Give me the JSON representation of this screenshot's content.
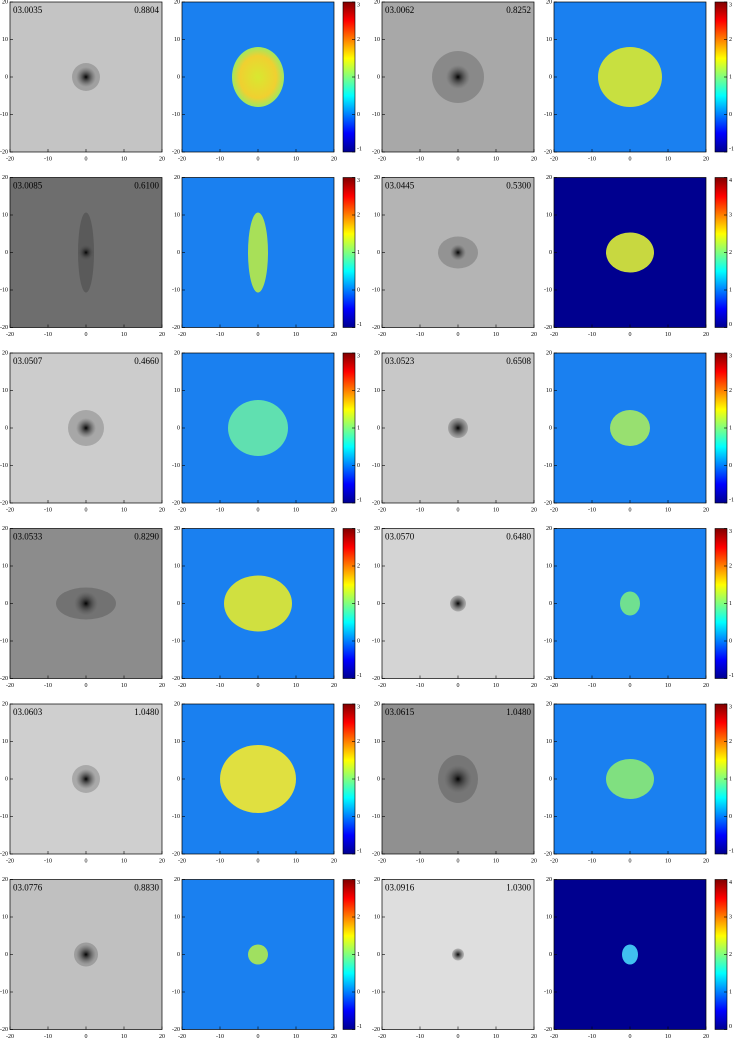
{
  "panels": [
    {
      "id": "03.0035",
      "z": "0.8804",
      "cbar_ticks": [
        -1,
        0,
        1,
        2,
        3
      ]
    },
    {
      "id": "03.0062",
      "z": "0.8252",
      "cbar_ticks": [
        -1,
        0,
        1,
        2,
        3
      ]
    },
    {
      "id": "03.0085",
      "z": "0.6100",
      "cbar_ticks": [
        -1,
        0,
        1,
        2,
        3
      ]
    },
    {
      "id": "03.0445",
      "z": "0.5300",
      "cbar_ticks": [
        0,
        1,
        2,
        3,
        4
      ]
    },
    {
      "id": "03.0507",
      "z": "0.4660",
      "cbar_ticks": [
        -1,
        0,
        1,
        2,
        3
      ]
    },
    {
      "id": "03.0523",
      "z": "0.6508",
      "cbar_ticks": [
        -1,
        0,
        1,
        2,
        3
      ]
    },
    {
      "id": "03.0533",
      "z": "0.8290",
      "cbar_ticks": [
        -1,
        0,
        1,
        2,
        3
      ]
    },
    {
      "id": "03.0570",
      "z": "0.6480",
      "cbar_ticks": [
        -1,
        0,
        1,
        2,
        3
      ]
    },
    {
      "id": "03.0603",
      "z": "1.0480",
      "cbar_ticks": [
        -1,
        0,
        1,
        2,
        3
      ]
    },
    {
      "id": "03.0615",
      "z": "1.0480",
      "cbar_ticks": [
        -1,
        0,
        1,
        2,
        3
      ]
    },
    {
      "id": "03.0776",
      "z": "0.8830",
      "cbar_ticks": [
        -1,
        0,
        1,
        2,
        3
      ]
    },
    {
      "id": "03.0916",
      "z": "1.0300",
      "cbar_ticks": [
        0,
        1,
        2,
        3,
        4
      ]
    }
  ],
  "axis_ticks": [
    -20,
    -10,
    0,
    10,
    20
  ]
}
